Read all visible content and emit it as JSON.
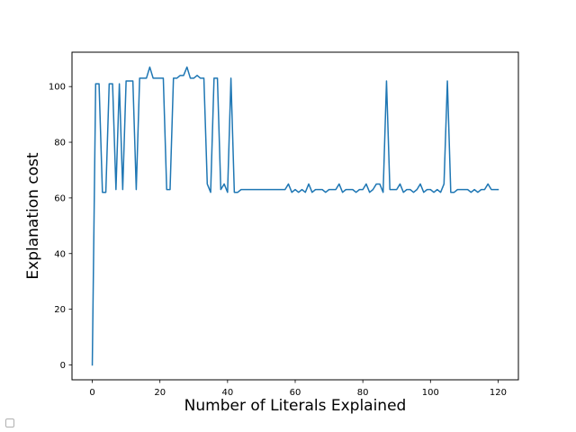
{
  "chart_data": {
    "type": "line",
    "title": "",
    "xlabel": "Number of Literals Explained",
    "ylabel": "Explanation cost",
    "xlim": [
      -6,
      126
    ],
    "ylim": [
      -5.35,
      112.35
    ],
    "x_ticks": [
      0,
      20,
      40,
      60,
      80,
      100,
      120
    ],
    "y_ticks": [
      0,
      20,
      40,
      60,
      80,
      100
    ],
    "grid": false,
    "legend": "none",
    "series_color": "#1f77b4",
    "series": [
      {
        "x": [
          0,
          1,
          2,
          3,
          4,
          5,
          6,
          7,
          8,
          9,
          10,
          11,
          12,
          13,
          14,
          15,
          16,
          17,
          18,
          19,
          20,
          21,
          22,
          23,
          24,
          25,
          26,
          27,
          28,
          29,
          30,
          31,
          32,
          33,
          34,
          35,
          36,
          37,
          38,
          39,
          40,
          41,
          42,
          43,
          44,
          45,
          46,
          47,
          48,
          49,
          50,
          51,
          52,
          53,
          54,
          55,
          56,
          57,
          58,
          59,
          60,
          61,
          62,
          63,
          64,
          65,
          66,
          67,
          68,
          69,
          70,
          71,
          72,
          73,
          74,
          75,
          76,
          77,
          78,
          79,
          80,
          81,
          82,
          83,
          84,
          85,
          86,
          87,
          88,
          89,
          90,
          91,
          92,
          93,
          94,
          95,
          96,
          97,
          98,
          99,
          100,
          101,
          102,
          103,
          104,
          105,
          106,
          107,
          108,
          109,
          110,
          111,
          112,
          113,
          114,
          115,
          116,
          117,
          118,
          119,
          120
        ],
        "values": [
          0,
          101,
          101,
          62,
          62,
          101,
          101,
          63,
          101,
          63,
          102,
          102,
          102,
          63,
          103,
          103,
          103,
          107,
          103,
          103,
          103,
          103,
          63,
          63,
          103,
          103,
          104,
          104,
          107,
          103,
          103,
          104,
          103,
          103,
          65,
          62,
          103,
          103,
          63,
          65,
          62,
          103,
          62,
          62,
          63,
          63,
          63,
          63,
          63,
          63,
          63,
          63,
          63,
          63,
          63,
          63,
          63,
          63,
          65,
          62,
          63,
          62,
          63,
          62,
          65,
          62,
          63,
          63,
          63,
          62,
          63,
          63,
          63,
          65,
          62,
          63,
          63,
          63,
          62,
          63,
          63,
          65,
          62,
          63,
          65,
          65,
          62,
          102,
          63,
          63,
          63,
          65,
          62,
          63,
          63,
          62,
          63,
          65,
          62,
          63,
          63,
          62,
          63,
          62,
          65,
          102,
          62,
          62,
          63,
          63,
          63,
          63,
          62,
          63,
          62,
          63,
          63,
          65,
          63,
          63,
          63
        ]
      }
    ]
  }
}
